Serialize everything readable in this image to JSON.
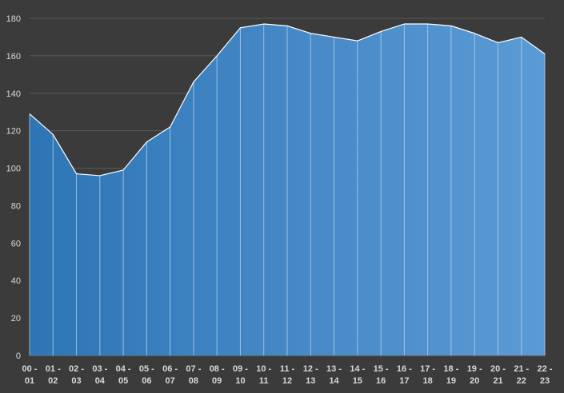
{
  "chart_data": {
    "type": "area",
    "title": "",
    "xlabel": "",
    "ylabel": "",
    "categories": [
      "00 - 01",
      "01 - 02",
      "02 - 03",
      "03 - 04",
      "04 - 05",
      "05 - 06",
      "06 - 07",
      "07 - 08",
      "08 - 09",
      "09 - 10",
      "10 - 11",
      "11 - 12",
      "12 - 13",
      "13 - 14",
      "14 - 15",
      "15 - 16",
      "16 - 17",
      "17 - 18",
      "18 - 19",
      "19 - 20",
      "20 - 21",
      "21 - 22",
      "22 - 23"
    ],
    "x_boundaries": [
      "00",
      "01",
      "02",
      "03",
      "04",
      "05",
      "06",
      "07",
      "08",
      "09",
      "10",
      "11",
      "12",
      "13",
      "14",
      "15",
      "16",
      "17",
      "18",
      "19",
      "20",
      "21",
      "22",
      "23"
    ],
    "values": [
      129,
      118,
      97,
      96,
      99,
      114,
      122,
      146,
      160,
      175,
      177,
      176,
      172,
      170,
      168,
      173,
      177,
      177,
      176,
      172,
      167,
      170,
      161
    ],
    "ylim": [
      0,
      180
    ],
    "yticks": [
      0,
      20,
      40,
      60,
      80,
      100,
      120,
      140,
      160,
      180
    ],
    "grid": true,
    "legend": "none",
    "colors": {
      "background": "#3b3b3b",
      "gridline": "#595959",
      "area_start": "#2e75b6",
      "area_end": "#5b9bd5",
      "outline": "#ffffff",
      "divider": "#bcd3ec",
      "tick_text": "#d9d9d9"
    }
  }
}
